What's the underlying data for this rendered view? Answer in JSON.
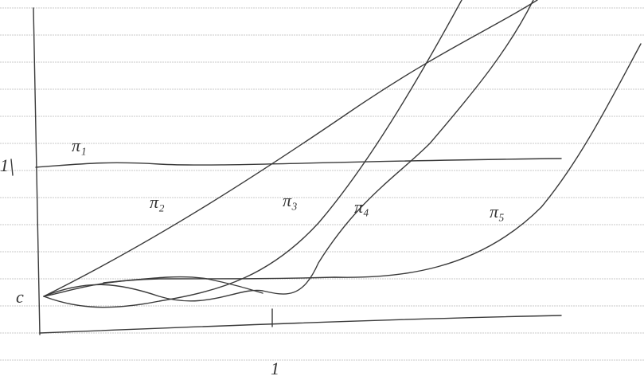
{
  "axes": {
    "y_tick_label": "1",
    "origin_label": "c",
    "x_tick_label": "1"
  },
  "curves": [
    {
      "label": "π₁"
    },
    {
      "label": "π₂"
    },
    {
      "label": "π₃"
    },
    {
      "label": "π₄"
    },
    {
      "label": "π₅"
    }
  ]
}
